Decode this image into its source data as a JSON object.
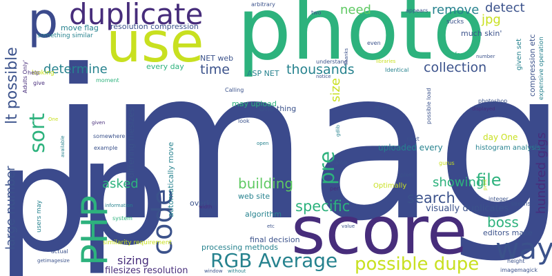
{
  "palette": {
    "navy": "#3b4a8c",
    "indigo": "#472d7b",
    "teal": "#21918c",
    "green": "#2db27d",
    "lime": "#5ec962",
    "yellow": "#c8e020",
    "purple": "#440154",
    "blue": "#3b528b",
    "cyan": "#26828e"
  },
  "words": {
    "image": "image",
    "photo": "photo",
    "p_top": "p",
    "p_bottom": "p",
    "p_left": "p",
    "use": "use",
    "score": "score",
    "duplicate": "duplicate",
    "php": "PHP",
    "code": "code",
    "way": "way",
    "rgb_average": "RGB Average",
    "possible_dupe": "possible dupe",
    "specific": "specific",
    "search": "search",
    "sort": "sort",
    "pre": "pre",
    "file": "file",
    "boss": "boss",
    "determine": "determine",
    "time": "time",
    "thousands": "thousands",
    "collection": "collection",
    "need": "need",
    "remove": "remove",
    "detect": "detect",
    "jpg": "jpg",
    "building": "building",
    "showing": "showing",
    "asked": "asked",
    "sizing": "sizing",
    "size": "size",
    "hundred_gigs": "hundred gigs",
    "lt_possible": "lt possible",
    "large_number": "large number",
    "filesizes_resolution": "filesizes resolution",
    "visually_duplicates": "visually duplicates",
    "uploaded_every": "uploaded every",
    "every_day": "every day",
    "net_web": "NET web",
    "asp_net": "ASP NET",
    "may_upload": "may upload",
    "one_thing": "One thing",
    "final_decision": "final decision",
    "processing_methods": "processing methods",
    "histogram_analysis": "histogram analysis",
    "day_one": "day One",
    "editors_make": "editors make",
    "overkill": "overkill",
    "web_site": "web site",
    "algorithm": "algorithm",
    "optimally": "Optimally",
    "differing_filesizes": "differing filesizes",
    "automatically_move": "automatically move",
    "move_flag": "move flag",
    "resolution_compression": "resolution compression",
    "something_similar": "something similar",
    "much_skin": "much skin'",
    "compression_etc": "compression etc",
    "expensive_operation": "expensive operation",
    "given_set": "given set",
    "arbitrary": "arbitrary",
    "two": "two",
    "thanks": "Thanks",
    "appears": "appears",
    "sucks": "sucks",
    "even": "even",
    "fast": "fast",
    "number": "number",
    "libraries": "libraries",
    "understand": "understand",
    "identical": "Identical",
    "notice": "notice",
    "looking": "looking",
    "help": "help",
    "give": "give",
    "adults_only": "Adults Only'",
    "moment": "moment",
    "calling": "Calling",
    "stored": "stored",
    "photoshop": "photoshop",
    "displayed": "displayed",
    "possible_load": "possible load",
    "gdlib": "gdlib",
    "look": "look",
    "given": "given",
    "somewhere": "somewhere",
    "example": "example",
    "available": "available",
    "one_small": "One",
    "open": "open",
    "dialog": "dialog",
    "next": "next",
    "pixel": "pixel",
    "per": "per",
    "gurus": "gurus",
    "print": "print",
    "seems": "seems",
    "integer": "integer",
    "information": "information",
    "system": "system",
    "width": "width",
    "users_may": "users may",
    "similarity_requirement": "similarity requirement",
    "actual": "actual",
    "getimagesize": "getimagesize",
    "etc": "etc",
    "value": "value",
    "window": "window",
    "without": "without",
    "height": "height",
    "imagemagick": "imagemagick"
  }
}
